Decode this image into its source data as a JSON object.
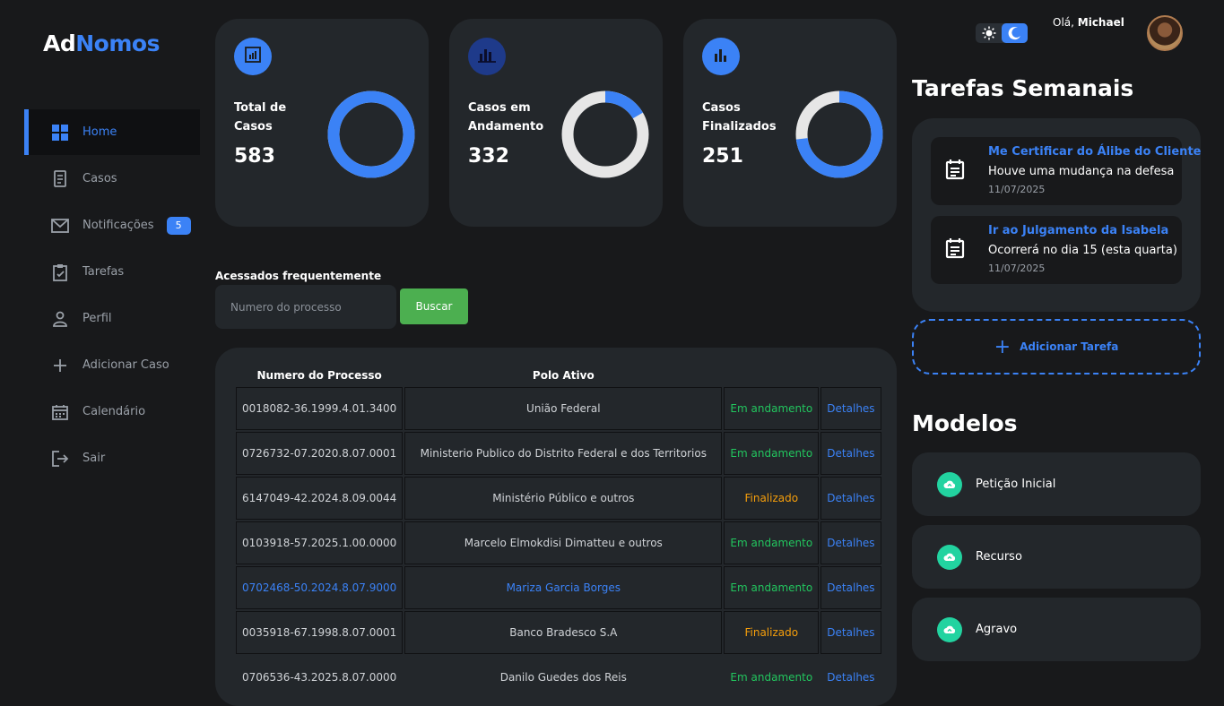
{
  "brand": {
    "part1": "Ad",
    "part2": "Nomos"
  },
  "sidebar": {
    "items": [
      {
        "label": "Home",
        "icon": "grid-icon"
      },
      {
        "label": "Casos",
        "icon": "document-icon"
      },
      {
        "label": "Notificações",
        "icon": "mail-icon",
        "badge": "5"
      },
      {
        "label": "Tarefas",
        "icon": "clipboard-check-icon"
      },
      {
        "label": "Perfil",
        "icon": "user-icon"
      },
      {
        "label": "Adicionar Caso",
        "icon": "plus-icon"
      },
      {
        "label": "Calendário",
        "icon": "calendar-icon"
      },
      {
        "label": "Sair",
        "icon": "logout-icon"
      }
    ]
  },
  "stats": [
    {
      "label": "Total de Casos",
      "value": "583",
      "fraction": 1.0,
      "icon_color": "#3b82f6"
    },
    {
      "label": "Casos em Andamento",
      "value": "332",
      "fraction": 0.166,
      "icon_color": "#1e3a8a"
    },
    {
      "label": "Casos Finalizados",
      "value": "251",
      "fraction": 0.73,
      "icon_color": "#3b82f6"
    }
  ],
  "frequent": {
    "title": "Acessados frequentemente",
    "placeholder": "Numero do processo",
    "button": "Buscar"
  },
  "table": {
    "headers": [
      "Numero do Processo",
      "Polo Ativo"
    ],
    "rows": [
      {
        "numero": "0018082-36.1999.4.01.3400",
        "polo": "União Federal",
        "status": "Em andamento",
        "action": "Detalhes"
      },
      {
        "numero": "0726732-07.2020.8.07.0001",
        "polo": "Ministerio Publico do Distrito Federal e dos Territorios",
        "status": "Em andamento",
        "action": "Detalhes"
      },
      {
        "numero": "6147049-42.2024.8.09.0044",
        "polo": "Ministério Público e outros",
        "status": "Finalizado",
        "action": "Detalhes"
      },
      {
        "numero": "0103918-57.2025.1.00.0000",
        "polo": "Marcelo Elmokdisi Dimatteu e outros",
        "status": "Em andamento",
        "action": "Detalhes"
      },
      {
        "numero": "0702468-50.2024.8.07.9000",
        "polo": "Mariza Garcia Borges",
        "status": "Em andamento",
        "action": "Detalhes"
      },
      {
        "numero": "0035918-67.1998.8.07.0001",
        "polo": "Banco Bradesco S.A",
        "status": "Finalizado",
        "action": "Detalhes"
      },
      {
        "numero": "0706536-43.2025.8.07.0000",
        "polo": "Danilo Guedes dos Reis",
        "status": "Em andamento",
        "action": "Detalhes"
      }
    ]
  },
  "header": {
    "greeting": "Olá, ",
    "user": "Michael"
  },
  "tasks": {
    "title": "Tarefas Semanais",
    "items": [
      {
        "title": "Me Certificar do Álibe do Cliente",
        "desc": "Houve uma mudança na defesa",
        "date": "11/07/2025"
      },
      {
        "title": "Ir ao Julgamento da Isabela",
        "desc": "Ocorrerá no dia 15 (esta quarta)",
        "date": "11/07/2025"
      }
    ],
    "add_label": "Adicionar Tarefa"
  },
  "models": {
    "title": "Modelos",
    "items": [
      {
        "label": "Petição Inicial"
      },
      {
        "label": "Recurso"
      },
      {
        "label": "Agravo"
      }
    ]
  },
  "colors": {
    "accent": "#3b82f6",
    "success": "#22c55e",
    "warning": "#f59e0b",
    "panel": "#23272b"
  }
}
